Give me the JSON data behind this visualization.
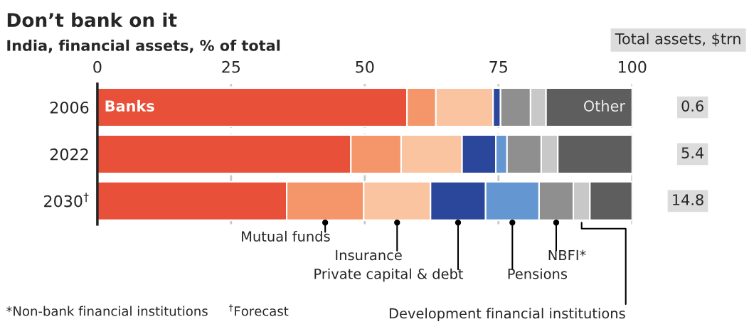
{
  "chart_data": {
    "type": "bar",
    "orientation": "horizontal",
    "stacked": true,
    "title": "Don’t bank on it",
    "subtitle": "India, financial assets, % of total",
    "categories": [
      "2006",
      "2022",
      "2030$^{†}$"
    ],
    "series": [
      {
        "name": "Banks",
        "color": "#e8503a",
        "values": [
          57.9,
          47.4,
          35.4
        ]
      },
      {
        "name": "Mutual funds",
        "color": "#f4956a",
        "values": [
          5.4,
          9.4,
          14.4
        ]
      },
      {
        "name": "Insurance",
        "color": "#f9c49f",
        "values": [
          10.7,
          11.4,
          12.5
        ]
      },
      {
        "name": "Private capital & debt",
        "color": "#2b479b",
        "values": [
          1.4,
          6.3,
          10.3
        ]
      },
      {
        "name": "Pensions",
        "color": "#6497d1",
        "values": [
          0,
          2.1,
          10.0
        ]
      },
      {
        "name": "NBFI*",
        "color": "#8f8f8f",
        "values": [
          5.6,
          6.4,
          6.4
        ]
      },
      {
        "name": "Development financial institutions",
        "color": "#c8c8c8",
        "values": [
          2.9,
          3.1,
          3.1
        ]
      },
      {
        "name": "Other",
        "color": "#5e5e5e",
        "values": [
          16.1,
          13.9,
          7.9
        ]
      }
    ],
    "xlim": [
      0,
      100
    ],
    "xticks": [
      0,
      25,
      50,
      75,
      100
    ],
    "grid": "x",
    "legend": false,
    "annotations": [
      "Total assets, $trn",
      "0.6",
      "5.4",
      "14.8",
      "*Non-bank financial institutions     $^{†}$Forecast"
    ]
  }
}
